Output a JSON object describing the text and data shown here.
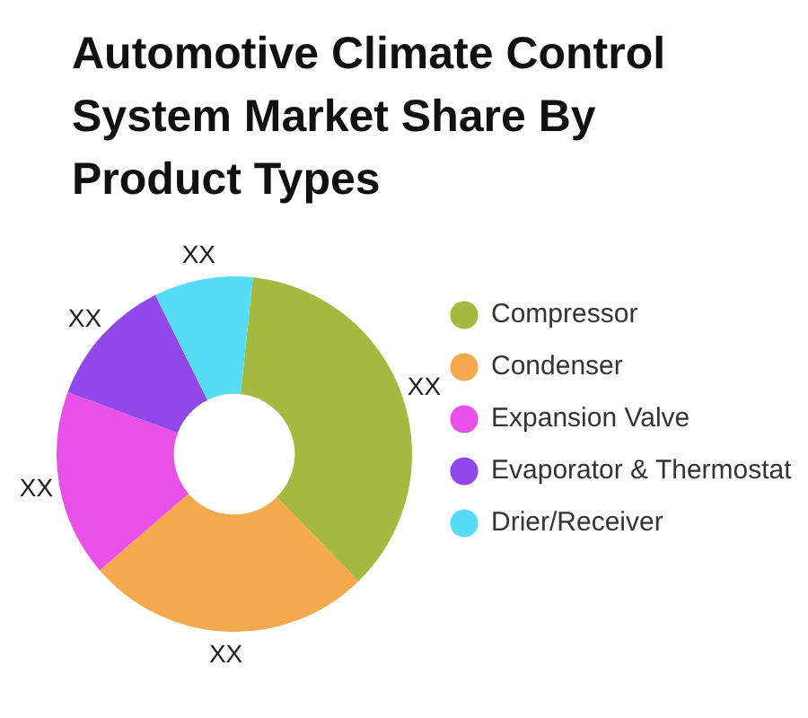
{
  "chart_data": {
    "type": "donut",
    "title": "Automotive Climate Control System Market Share By Product Types",
    "categories": [
      "Compressor",
      "Condenser",
      "Expansion Valve",
      "Evaporator & Thermostat",
      "Drier/Receiver"
    ],
    "values": [
      36,
      26,
      17,
      12,
      9
    ],
    "colors": [
      "#a5b83f",
      "#f4a94c",
      "#e850e8",
      "#9147e9",
      "#57dcf8"
    ],
    "value_labels": [
      "XX",
      "XX",
      "XX",
      "XX",
      "XX"
    ],
    "legend": "right"
  }
}
